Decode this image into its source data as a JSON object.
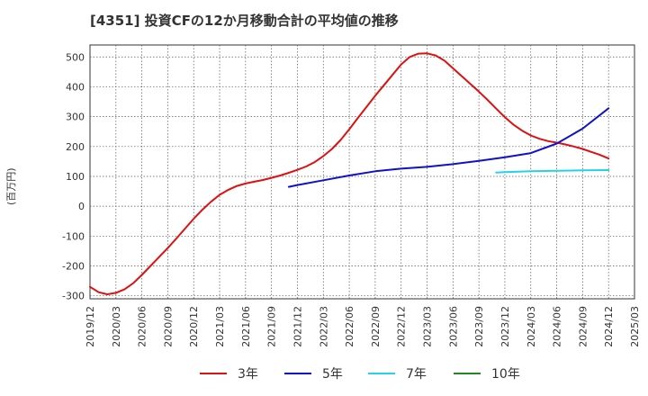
{
  "title": "[4351]  投資CFの12か月移動合計の平均値の推移",
  "ylabel_text": "(百万円)",
  "chart_data": {
    "type": "line",
    "title": "[4351]  投資CFの12か月移動合計の平均値の推移",
    "ylabel": "(百万円)",
    "ylim": [
      -310,
      540
    ],
    "yticks": [
      500,
      400,
      300,
      200,
      100,
      0,
      -100,
      -200,
      -300
    ],
    "x_range": [
      "2019-12",
      "2025-03"
    ],
    "xticks": [
      "2019/12",
      "2020/03",
      "2020/06",
      "2020/09",
      "2020/12",
      "2021/03",
      "2021/06",
      "2021/09",
      "2021/12",
      "2022/03",
      "2022/06",
      "2022/09",
      "2022/12",
      "2023/03",
      "2023/06",
      "2023/09",
      "2023/12",
      "2024/03",
      "2024/06",
      "2024/09",
      "2024/12",
      "2025/03"
    ],
    "grid": true,
    "legend_position": "bottom",
    "series": [
      {
        "name": "3年",
        "color": "#dd1111",
        "points": [
          [
            "2019-12",
            -270
          ],
          [
            "2020-01",
            -288
          ],
          [
            "2020-02",
            -295
          ],
          [
            "2020-03",
            -290
          ],
          [
            "2020-04",
            -278
          ],
          [
            "2020-05",
            -258
          ],
          [
            "2020-06",
            -230
          ],
          [
            "2020-07",
            -200
          ],
          [
            "2020-08",
            -170
          ],
          [
            "2020-09",
            -140
          ],
          [
            "2020-10",
            -108
          ],
          [
            "2020-11",
            -75
          ],
          [
            "2020-12",
            -42
          ],
          [
            "2021-01",
            -12
          ],
          [
            "2021-02",
            15
          ],
          [
            "2021-03",
            38
          ],
          [
            "2021-04",
            55
          ],
          [
            "2021-05",
            68
          ],
          [
            "2021-06",
            76
          ],
          [
            "2021-07",
            82
          ],
          [
            "2021-08",
            88
          ],
          [
            "2021-09",
            95
          ],
          [
            "2021-10",
            103
          ],
          [
            "2021-11",
            112
          ],
          [
            "2021-12",
            122
          ],
          [
            "2022-01",
            133
          ],
          [
            "2022-02",
            148
          ],
          [
            "2022-03",
            168
          ],
          [
            "2022-04",
            192
          ],
          [
            "2022-05",
            222
          ],
          [
            "2022-06",
            258
          ],
          [
            "2022-07",
            296
          ],
          [
            "2022-08",
            333
          ],
          [
            "2022-09",
            370
          ],
          [
            "2022-10",
            405
          ],
          [
            "2022-11",
            440
          ],
          [
            "2022-12",
            475
          ],
          [
            "2023-01",
            500
          ],
          [
            "2023-02",
            511
          ],
          [
            "2023-03",
            512
          ],
          [
            "2023-04",
            505
          ],
          [
            "2023-05",
            488
          ],
          [
            "2023-06",
            462
          ],
          [
            "2023-07",
            436
          ],
          [
            "2023-08",
            410
          ],
          [
            "2023-09",
            384
          ],
          [
            "2023-10",
            356
          ],
          [
            "2023-11",
            327
          ],
          [
            "2023-12",
            298
          ],
          [
            "2024-01",
            273
          ],
          [
            "2024-02",
            253
          ],
          [
            "2024-03",
            237
          ],
          [
            "2024-04",
            226
          ],
          [
            "2024-05",
            218
          ],
          [
            "2024-06",
            213
          ],
          [
            "2024-07",
            207
          ],
          [
            "2024-08",
            200
          ],
          [
            "2024-09",
            192
          ],
          [
            "2024-10",
            182
          ],
          [
            "2024-11",
            172
          ],
          [
            "2024-12",
            160
          ]
        ]
      },
      {
        "name": "5年",
        "color": "#1111cc",
        "points": [
          [
            "2021-11",
            65
          ],
          [
            "2021-12",
            71
          ],
          [
            "2022-03",
            87
          ],
          [
            "2022-06",
            103
          ],
          [
            "2022-09",
            117
          ],
          [
            "2022-12",
            126
          ],
          [
            "2023-03",
            132
          ],
          [
            "2023-06",
            141
          ],
          [
            "2023-09",
            152
          ],
          [
            "2023-12",
            164
          ],
          [
            "2024-03",
            178
          ],
          [
            "2024-06",
            210
          ],
          [
            "2024-09",
            260
          ],
          [
            "2024-12",
            328
          ]
        ]
      },
      {
        "name": "7年",
        "color": "#22d3e6",
        "points": [
          [
            "2023-11",
            113
          ],
          [
            "2023-12",
            114
          ],
          [
            "2024-03",
            117
          ],
          [
            "2024-06",
            119
          ],
          [
            "2024-09",
            120
          ],
          [
            "2024-12",
            121
          ]
        ]
      },
      {
        "name": "10年",
        "color": "#228822",
        "points": []
      }
    ]
  }
}
